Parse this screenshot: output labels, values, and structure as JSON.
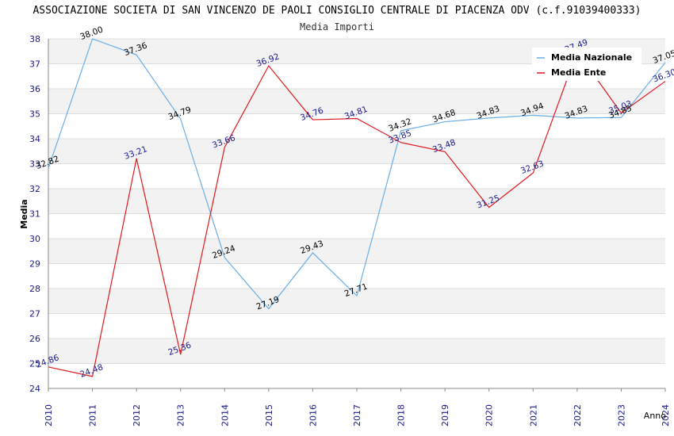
{
  "chart_data": {
    "type": "line",
    "title": "ASSOCIAZIONE SOCIETA DI SAN VINCENZO DE PAOLI CONSIGLIO CENTRALE DI PIACENZA ODV (c.f.91039400333)",
    "subtitle": "Media Importi",
    "xlabel": "Anno",
    "ylabel": "Media",
    "ylim": [
      24,
      38
    ],
    "yticks": [
      "24",
      "25",
      "26",
      "27",
      "28",
      "29",
      "30",
      "31",
      "32",
      "33",
      "34",
      "35",
      "36",
      "37",
      "38"
    ],
    "categories": [
      "2010",
      "2011",
      "2012",
      "2013",
      "2014",
      "2015",
      "2016",
      "2017",
      "2018",
      "2019",
      "2020",
      "2021",
      "2022",
      "2023",
      "2024"
    ],
    "legend_position": "top-right",
    "grid": true,
    "series": [
      {
        "name": "Media Nazionale",
        "color": "#6aaee6",
        "label_color": "#000000",
        "values": [
          32.82,
          38.0,
          37.36,
          34.79,
          29.24,
          27.19,
          29.43,
          27.71,
          34.32,
          34.68,
          34.83,
          34.94,
          34.83,
          34.85,
          37.05
        ],
        "labels": [
          "32.82",
          "38.00",
          "37.36",
          "34.79",
          "29.24",
          "27.19",
          "29.43",
          "27.71",
          "34.32",
          "34.68",
          "34.83",
          "34.94",
          "34.83",
          "34.85",
          "37.05"
        ]
      },
      {
        "name": "Media Ente",
        "color": "#e0191e",
        "label_color": "#1a1a8c",
        "values": [
          24.86,
          24.48,
          33.21,
          25.36,
          33.66,
          36.92,
          34.76,
          34.81,
          33.85,
          33.48,
          31.25,
          32.63,
          37.49,
          35.03,
          36.3
        ],
        "labels": [
          "24.86",
          "24.48",
          "33.21",
          "25.36",
          "33.66",
          "36.92",
          "34.76",
          "34.81",
          "33.85",
          "33.48",
          "31.25",
          "32.63",
          "37.49",
          "35.03",
          "36.30"
        ]
      }
    ]
  }
}
